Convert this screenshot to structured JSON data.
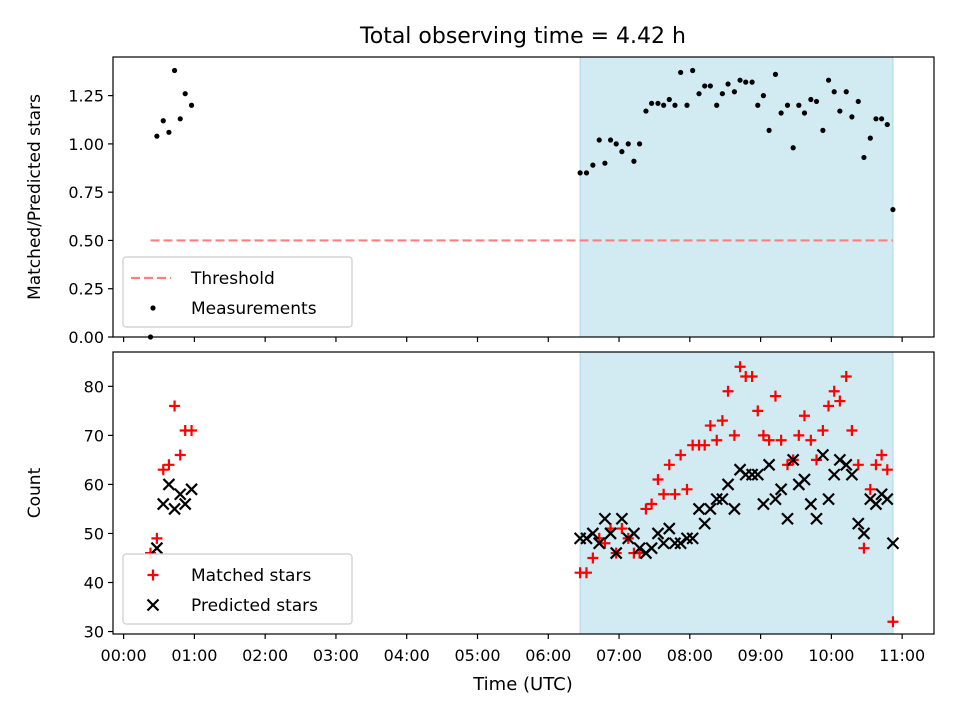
{
  "chart_data": {
    "title": "Total observing time = 4.42 h",
    "xlabel": "Time (UTC)",
    "x_unit": "hours UTC",
    "xlim": [
      -0.15,
      11.45
    ],
    "xticks": [
      0,
      1,
      2,
      3,
      4,
      5,
      6,
      7,
      8,
      9,
      10,
      11
    ],
    "xticklabels": [
      "00:00",
      "01:00",
      "02:00",
      "03:00",
      "04:00",
      "05:00",
      "06:00",
      "07:00",
      "08:00",
      "09:00",
      "10:00",
      "11:00"
    ],
    "shaded_span": {
      "x": [
        6.45,
        10.87
      ],
      "color": "#add8e6"
    },
    "panels": [
      {
        "id": "ratio",
        "type": "scatter",
        "ylabel": "Matched/Predicted stars",
        "ylim": [
          0,
          1.45
        ],
        "yticks": [
          0.0,
          0.25,
          0.5,
          0.75,
          1.0,
          1.25
        ],
        "yticklabels": [
          "0.00",
          "0.25",
          "0.50",
          "0.75",
          "1.00",
          "1.25"
        ],
        "legend": {
          "placement": "lower-left",
          "entries": [
            "Threshold",
            "Measurements"
          ]
        },
        "threshold": {
          "name": "Threshold",
          "y": 0.5,
          "x": [
            0.38,
            10.87
          ],
          "color": "#ff7f7f",
          "dash": true
        },
        "series": [
          {
            "name": "Measurements",
            "marker": "dot",
            "color": "#000000",
            "points": [
              [
                0.38,
                0.0
              ],
              [
                0.47,
                1.04
              ],
              [
                0.56,
                1.12
              ],
              [
                0.64,
                1.06
              ],
              [
                0.72,
                1.38
              ],
              [
                0.8,
                1.13
              ],
              [
                0.87,
                1.26
              ],
              [
                0.96,
                1.2
              ],
              [
                6.45,
                0.85
              ],
              [
                6.54,
                0.85
              ],
              [
                6.63,
                0.89
              ],
              [
                6.72,
                1.02
              ],
              [
                6.8,
                0.9
              ],
              [
                6.88,
                1.02
              ],
              [
                6.96,
                1.0
              ],
              [
                7.04,
                0.96
              ],
              [
                7.13,
                1.0
              ],
              [
                7.21,
                0.91
              ],
              [
                7.29,
                1.0
              ],
              [
                7.38,
                1.17
              ],
              [
                7.46,
                1.21
              ],
              [
                7.55,
                1.21
              ],
              [
                7.63,
                1.2
              ],
              [
                7.71,
                1.23
              ],
              [
                7.79,
                1.2
              ],
              [
                7.87,
                1.37
              ],
              [
                7.96,
                1.2
              ],
              [
                8.04,
                1.38
              ],
              [
                8.13,
                1.26
              ],
              [
                8.21,
                1.3
              ],
              [
                8.29,
                1.3
              ],
              [
                8.38,
                1.2
              ],
              [
                8.46,
                1.26
              ],
              [
                8.54,
                1.31
              ],
              [
                8.63,
                1.27
              ],
              [
                8.71,
                1.33
              ],
              [
                8.79,
                1.32
              ],
              [
                8.88,
                1.32
              ],
              [
                8.96,
                1.2
              ],
              [
                9.04,
                1.25
              ],
              [
                9.12,
                1.07
              ],
              [
                9.21,
                1.36
              ],
              [
                9.29,
                1.16
              ],
              [
                9.38,
                1.2
              ],
              [
                9.46,
                0.98
              ],
              [
                9.54,
                1.2
              ],
              [
                9.62,
                1.16
              ],
              [
                9.71,
                1.23
              ],
              [
                9.79,
                1.22
              ],
              [
                9.88,
                1.07
              ],
              [
                9.96,
                1.33
              ],
              [
                10.04,
                1.27
              ],
              [
                10.12,
                1.17
              ],
              [
                10.21,
                1.27
              ],
              [
                10.29,
                1.14
              ],
              [
                10.38,
                1.22
              ],
              [
                10.46,
                0.93
              ],
              [
                10.55,
                1.03
              ],
              [
                10.63,
                1.13
              ],
              [
                10.71,
                1.13
              ],
              [
                10.79,
                1.1
              ],
              [
                10.87,
                0.66
              ]
            ]
          }
        ]
      },
      {
        "id": "counts",
        "type": "scatter",
        "ylabel": "Count",
        "ylim": [
          29.5,
          87
        ],
        "yticks": [
          30,
          40,
          50,
          60,
          70,
          80
        ],
        "yticklabels": [
          "30",
          "40",
          "50",
          "60",
          "70",
          "80"
        ],
        "legend": {
          "placement": "lower-left",
          "entries": [
            "Matched stars",
            "Predicted stars"
          ]
        },
        "series": [
          {
            "name": "Matched stars",
            "marker": "plus",
            "color": "#ff0000",
            "points": [
              [
                0.38,
                46
              ],
              [
                0.47,
                49
              ],
              [
                0.56,
                63
              ],
              [
                0.64,
                64
              ],
              [
                0.72,
                76
              ],
              [
                0.8,
                66
              ],
              [
                0.87,
                71
              ],
              [
                0.96,
                71
              ],
              [
                6.45,
                42
              ],
              [
                6.54,
                42
              ],
              [
                6.63,
                45
              ],
              [
                6.72,
                49
              ],
              [
                6.8,
                48
              ],
              [
                6.88,
                51
              ],
              [
                6.96,
                46
              ],
              [
                7.04,
                51
              ],
              [
                7.13,
                49
              ],
              [
                7.21,
                46
              ],
              [
                7.29,
                46
              ],
              [
                7.38,
                55
              ],
              [
                7.46,
                56
              ],
              [
                7.55,
                61
              ],
              [
                7.63,
                58
              ],
              [
                7.71,
                64
              ],
              [
                7.79,
                58
              ],
              [
                7.87,
                66
              ],
              [
                7.96,
                59
              ],
              [
                8.04,
                68
              ],
              [
                8.13,
                68
              ],
              [
                8.21,
                68
              ],
              [
                8.29,
                72
              ],
              [
                8.38,
                69
              ],
              [
                8.46,
                73
              ],
              [
                8.54,
                79
              ],
              [
                8.63,
                70
              ],
              [
                8.71,
                84
              ],
              [
                8.79,
                82
              ],
              [
                8.88,
                82
              ],
              [
                8.96,
                75
              ],
              [
                9.04,
                70
              ],
              [
                9.12,
                69
              ],
              [
                9.21,
                78
              ],
              [
                9.29,
                69
              ],
              [
                9.38,
                64
              ],
              [
                9.46,
                65
              ],
              [
                9.54,
                70
              ],
              [
                9.62,
                74
              ],
              [
                9.71,
                69
              ],
              [
                9.79,
                65
              ],
              [
                9.88,
                71
              ],
              [
                9.96,
                76
              ],
              [
                10.04,
                79
              ],
              [
                10.12,
                77
              ],
              [
                10.21,
                82
              ],
              [
                10.29,
                71
              ],
              [
                10.38,
                64
              ],
              [
                10.46,
                47
              ],
              [
                10.55,
                59
              ],
              [
                10.63,
                64
              ],
              [
                10.71,
                66
              ],
              [
                10.79,
                63
              ],
              [
                10.87,
                32
              ]
            ]
          },
          {
            "name": "Predicted stars",
            "marker": "x",
            "color": "#000000",
            "points": [
              [
                0.47,
                47
              ],
              [
                0.56,
                56
              ],
              [
                0.64,
                60
              ],
              [
                0.72,
                55
              ],
              [
                0.8,
                58
              ],
              [
                0.87,
                56
              ],
              [
                0.96,
                59
              ],
              [
                6.45,
                49
              ],
              [
                6.54,
                49
              ],
              [
                6.63,
                50
              ],
              [
                6.72,
                48
              ],
              [
                6.8,
                53
              ],
              [
                6.88,
                50
              ],
              [
                6.96,
                46
              ],
              [
                7.04,
                53
              ],
              [
                7.13,
                49
              ],
              [
                7.21,
                50
              ],
              [
                7.29,
                47
              ],
              [
                7.38,
                46
              ],
              [
                7.46,
                47
              ],
              [
                7.55,
                50
              ],
              [
                7.63,
                48
              ],
              [
                7.71,
                51
              ],
              [
                7.79,
                48
              ],
              [
                7.87,
                48
              ],
              [
                7.96,
                49
              ],
              [
                8.04,
                49
              ],
              [
                8.13,
                55
              ],
              [
                8.21,
                52
              ],
              [
                8.29,
                55
              ],
              [
                8.38,
                57
              ],
              [
                8.46,
                57
              ],
              [
                8.54,
                60
              ],
              [
                8.63,
                55
              ],
              [
                8.71,
                63
              ],
              [
                8.79,
                62
              ],
              [
                8.88,
                62
              ],
              [
                8.96,
                62
              ],
              [
                9.04,
                56
              ],
              [
                9.12,
                64
              ],
              [
                9.21,
                57
              ],
              [
                9.29,
                59
              ],
              [
                9.38,
                53
              ],
              [
                9.46,
                65
              ],
              [
                9.54,
                60
              ],
              [
                9.62,
                61
              ],
              [
                9.71,
                56
              ],
              [
                9.79,
                53
              ],
              [
                9.88,
                66
              ],
              [
                9.96,
                57
              ],
              [
                10.04,
                62
              ],
              [
                10.12,
                65
              ],
              [
                10.21,
                64
              ],
              [
                10.29,
                62
              ],
              [
                10.38,
                52
              ],
              [
                10.46,
                50
              ],
              [
                10.55,
                57
              ],
              [
                10.63,
                56
              ],
              [
                10.71,
                58
              ],
              [
                10.79,
                57
              ],
              [
                10.87,
                48
              ]
            ]
          }
        ]
      }
    ]
  }
}
